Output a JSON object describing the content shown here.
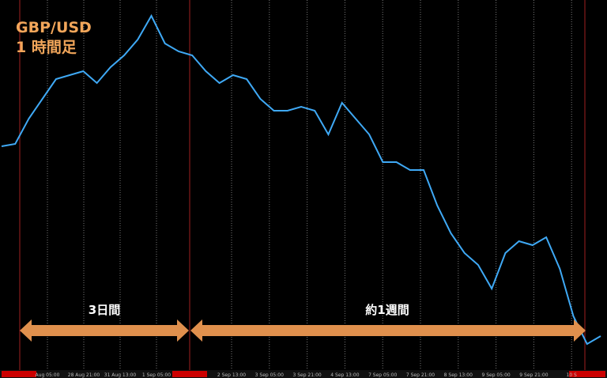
{
  "chart_data": {
    "type": "line",
    "title": "GBP/USD",
    "subtitle": "1 時間足",
    "annotations": [
      "3日間",
      "約1週間"
    ],
    "xticks": [
      "Aug 05:00",
      "28 Aug 21:00",
      "31 Aug 13:00",
      "1 Sep 05:00",
      "2 Sep 13:00",
      "3 Sep 05:00",
      "3 Sep 21:00",
      "4 Sep 13:00",
      "7 Sep 05:00",
      "7 Sep 21:00",
      "8 Sep 13:00",
      "9 Sep 05:00",
      "9 Sep 21:00",
      "10 S"
    ],
    "series": [
      {
        "name": "GBP/USD",
        "color": "#3fa9f5",
        "values": [
          293,
          296,
          328,
          353,
          378,
          383,
          388,
          373,
          393,
          408,
          428,
          458,
          423,
          413,
          408,
          388,
          373,
          383,
          378,
          353,
          338,
          338,
          343,
          338,
          308,
          348,
          328,
          308,
          273,
          273,
          263,
          263,
          218,
          183,
          158,
          143,
          113,
          158,
          173,
          168,
          178,
          138,
          78,
          43,
          53
        ]
      }
    ],
    "ylim": [
      0,
      478
    ]
  }
}
